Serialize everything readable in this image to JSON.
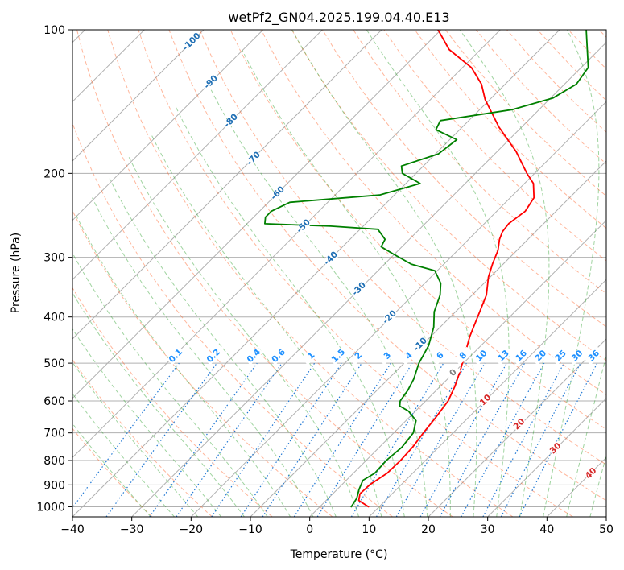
{
  "chart_data": {
    "type": "line",
    "title": "wetPf2_GN04.2025.199.04.40.E13",
    "xlabel": "Temperature (°C)",
    "ylabel": "Pressure (hPa)",
    "xlim": [
      -40,
      50
    ],
    "ylim": [
      1050,
      100
    ],
    "y_scale": "log",
    "skew": true,
    "x_ticks": [
      -40,
      -30,
      -20,
      -10,
      0,
      10,
      20,
      30,
      40,
      50
    ],
    "y_ticks": [
      1000,
      900,
      800,
      700,
      600,
      500,
      400,
      300,
      200,
      100
    ],
    "grid": true,
    "series": [
      {
        "color": "#ff0000",
        "points": [
          [
            8.2,
            1000
          ],
          [
            5.5,
            970
          ],
          [
            4.6,
            940
          ],
          [
            4.7,
            900
          ],
          [
            5.7,
            850
          ],
          [
            5.8,
            800
          ],
          [
            5.6,
            750
          ],
          [
            5.0,
            700
          ],
          [
            4.5,
            650
          ],
          [
            3.8,
            600
          ],
          [
            2.5,
            560
          ],
          [
            0.8,
            520
          ],
          [
            -1.2,
            480
          ],
          [
            -3.4,
            440
          ],
          [
            -5.4,
            400
          ],
          [
            -7.6,
            360
          ],
          [
            -10.3,
            330
          ],
          [
            -11.8,
            310
          ],
          [
            -13.2,
            290
          ],
          [
            -14.8,
            275
          ],
          [
            -15.6,
            265
          ],
          [
            -15.9,
            255
          ],
          [
            -15.2,
            240
          ],
          [
            -16.0,
            225
          ],
          [
            -18.5,
            210
          ],
          [
            -21.3,
            200
          ],
          [
            -26.8,
            180
          ],
          [
            -33.8,
            160
          ],
          [
            -40.8,
            140
          ],
          [
            -44.0,
            130
          ],
          [
            -48.5,
            120
          ],
          [
            -55.3,
            110
          ],
          [
            -60.5,
            100
          ]
        ]
      },
      {
        "color": "#008000",
        "points": [
          [
            5.3,
            1000
          ],
          [
            4.8,
            960
          ],
          [
            3.7,
            920
          ],
          [
            2.8,
            880
          ],
          [
            3.6,
            850
          ],
          [
            3.4,
            800
          ],
          [
            3.8,
            750
          ],
          [
            3.3,
            700
          ],
          [
            1.7,
            660
          ],
          [
            -1.2,
            630
          ],
          [
            -3.5,
            615
          ],
          [
            -4.3,
            600
          ],
          [
            -4.8,
            570
          ],
          [
            -5.7,
            540
          ],
          [
            -7.5,
            500
          ],
          [
            -8.8,
            460
          ],
          [
            -11.1,
            420
          ],
          [
            -13.6,
            390
          ],
          [
            -15.4,
            360
          ],
          [
            -17.3,
            340
          ],
          [
            -20.4,
            320
          ],
          [
            -25.5,
            310
          ],
          [
            -30.3,
            295
          ],
          [
            -33.5,
            285
          ],
          [
            -34.1,
            275
          ],
          [
            -37.0,
            262
          ],
          [
            -45.5,
            258
          ],
          [
            -57.0,
            255
          ],
          [
            -58.0,
            247
          ],
          [
            -58.0,
            240
          ],
          [
            -56.4,
            230
          ],
          [
            -42.5,
            222
          ],
          [
            -37.6,
            210
          ],
          [
            -42.3,
            200
          ],
          [
            -43.7,
            193
          ],
          [
            -39.5,
            182
          ],
          [
            -38.8,
            170
          ],
          [
            -44.0,
            162
          ],
          [
            -44.8,
            155
          ],
          [
            -34.5,
            147
          ],
          [
            -29.6,
            139
          ],
          [
            -28.0,
            130
          ],
          [
            -28.8,
            120
          ],
          [
            -35.5,
            100
          ]
        ]
      }
    ],
    "contour_labels": {
      "dry_adiabats": [
        "-100",
        "-90",
        "-80",
        "-70",
        "-60",
        "-50",
        "-40",
        "-30",
        "-20",
        "-10"
      ],
      "mixing_ratios": [
        "0.1",
        "0.2",
        "0.4",
        "0.6",
        "1",
        "1.5",
        "2",
        "3",
        "4",
        "6",
        "8",
        "10",
        "13",
        "16",
        "20",
        "25",
        "30",
        "36"
      ],
      "moist_adiabats": [
        "0",
        "10",
        "20",
        "30",
        "40"
      ]
    },
    "colors": {
      "temperature": "#ff0000",
      "dewpoint": "#008000",
      "dry_adiabat": "#ff5e21",
      "moist_adiabat": "#2ca02c",
      "mixing_ratio": "#1f77d4",
      "isotherm": "#808080",
      "dry_label": "#1f6fb4",
      "mixing_label": "#1e90ff",
      "moist_label_zero": "#808080",
      "moist_label": "#d62728"
    }
  }
}
